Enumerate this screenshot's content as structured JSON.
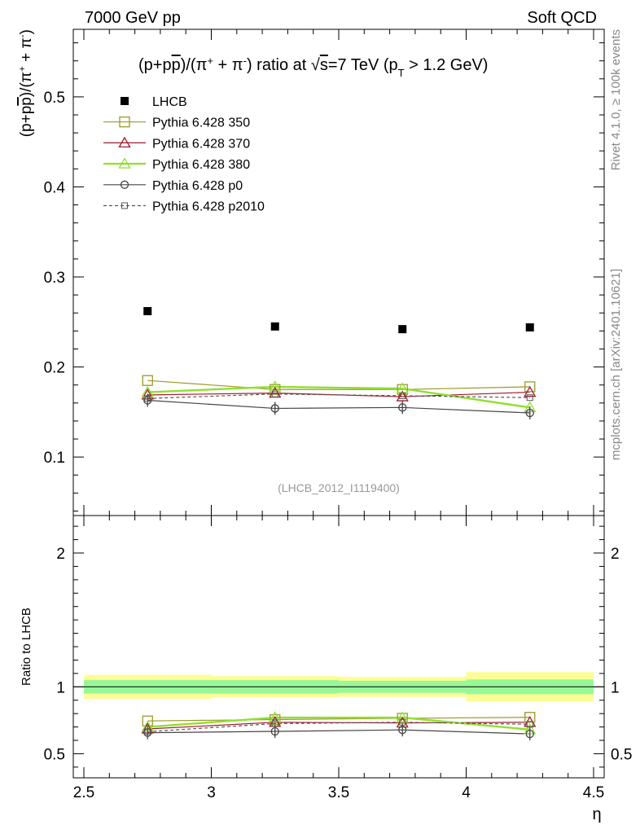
{
  "header": {
    "left": "7000 GeV pp",
    "right": "Soft QCD"
  },
  "side": {
    "rivet": "Rivet 4.1.0, ≥ 100k events",
    "mcplots": "mcplots.cern.ch [arXiv:2401.10621]"
  },
  "chart_data": [
    {
      "type": "scatter",
      "title": "(p+p̅)/(π⁺ + π⁻) ratio at √s=7 TeV (pT > 1.2 GeV)",
      "title_parts": {
        "lead": "(p+p",
        "pbar_letter": "p",
        "close": ")/(π",
        "plus_sup": "+",
        "mid": " + π",
        "minus_sup": "-",
        "ratio": ") ratio at ",
        "sqrt": "√",
        "s": "s",
        "energy": "=7 TeV (p",
        "sub_t": "T",
        "cut": " > 1.2 GeV)"
      },
      "ylabel": "(p+p̅)/(π⁺ + π⁻)",
      "ylabel_parts": {
        "lead": "(p+p",
        "pbar_letter": "p",
        "close": ")/(π",
        "plus_sup": "+",
        "mid": " + π",
        "minus_sup": "-",
        "end": ")"
      },
      "xlim": [
        2.5,
        4.5
      ],
      "ylim": [
        0.035,
        0.575
      ],
      "yticks": [
        0.1,
        0.2,
        0.3,
        0.4,
        0.5
      ],
      "ytick_labels": [
        "0.1",
        "0.2",
        "0.3",
        "0.4",
        "0.5"
      ],
      "watermark": "(LHCB_2012_I1119400)",
      "legend_position": "top-left",
      "x": [
        2.75,
        3.25,
        3.75,
        4.25
      ],
      "series": [
        {
          "name": "LHCB",
          "marker": "filled-square",
          "line": "none",
          "color": "#000000",
          "values": [
            0.262,
            0.245,
            0.242,
            0.244
          ]
        },
        {
          "name": "Pythia 6.428 350",
          "marker": "open-square",
          "line": "solid",
          "color": "#9a9a28",
          "values": [
            0.185,
            0.175,
            0.175,
            0.178
          ]
        },
        {
          "name": "Pythia 6.428 370",
          "marker": "open-triangle",
          "line": "solid",
          "color": "#a01a2e",
          "values": [
            0.169,
            0.171,
            0.167,
            0.172
          ]
        },
        {
          "name": "Pythia 6.428 380",
          "marker": "open-triangle",
          "line": "solid-thick",
          "color": "#90e030",
          "values": [
            0.172,
            0.178,
            0.176,
            0.155
          ]
        },
        {
          "name": "Pythia 6.428 p0",
          "marker": "open-circle",
          "line": "solid",
          "color": "#454545",
          "values": [
            0.163,
            0.154,
            0.155,
            0.149
          ]
        },
        {
          "name": "Pythia 6.428 p2010",
          "marker": "open-square-small",
          "line": "dashed",
          "color": "#555555",
          "values": [
            0.165,
            0.17,
            0.168,
            0.166
          ]
        }
      ]
    },
    {
      "type": "scatter",
      "ylabel": "Ratio to LHCB",
      "xlabel": "η",
      "xlim": [
        2.5,
        4.5
      ],
      "ylim": [
        0.32,
        2.28
      ],
      "yticks": [
        0.5,
        1,
        2
      ],
      "ytick_labels": [
        "0.5",
        "1",
        "2"
      ],
      "xticks": [
        2.5,
        3,
        3.5,
        4,
        4.5
      ],
      "xtick_labels": [
        "2.5",
        "3",
        "3.5",
        "4",
        "4.5"
      ],
      "bands": [
        {
          "x0": 2.5,
          "x1": 3.0,
          "inner": [
            0.95,
            1.05
          ],
          "outer": [
            0.91,
            1.09
          ]
        },
        {
          "x0": 3.0,
          "x1": 3.5,
          "inner": [
            0.95,
            1.05
          ],
          "outer": [
            0.92,
            1.08
          ]
        },
        {
          "x0": 3.5,
          "x1": 4.0,
          "inner": [
            0.955,
            1.045
          ],
          "outer": [
            0.925,
            1.075
          ]
        },
        {
          "x0": 4.0,
          "x1": 4.5,
          "inner": [
            0.945,
            1.055
          ],
          "outer": [
            0.89,
            1.11
          ]
        }
      ],
      "x": [
        2.75,
        3.25,
        3.75,
        4.25
      ],
      "series": [
        {
          "name": "Pythia 6.428 350",
          "marker": "open-square",
          "line": "solid",
          "color": "#9a9a28",
          "values": [
            0.745,
            0.755,
            0.765,
            0.772
          ]
        },
        {
          "name": "Pythia 6.428 370",
          "marker": "open-triangle",
          "line": "solid",
          "color": "#a01a2e",
          "values": [
            0.685,
            0.735,
            0.73,
            0.735
          ]
        },
        {
          "name": "Pythia 6.428 380",
          "marker": "open-triangle",
          "line": "solid-thick",
          "color": "#90e030",
          "values": [
            0.7,
            0.77,
            0.77,
            0.68
          ]
        },
        {
          "name": "Pythia 6.428 p0",
          "marker": "open-circle",
          "line": "solid",
          "color": "#454545",
          "values": [
            0.657,
            0.667,
            0.678,
            0.648
          ]
        },
        {
          "name": "Pythia 6.428 p2010",
          "marker": "open-square-small",
          "line": "dashed",
          "color": "#555555",
          "values": [
            0.665,
            0.725,
            0.735,
            0.72
          ]
        }
      ]
    }
  ]
}
